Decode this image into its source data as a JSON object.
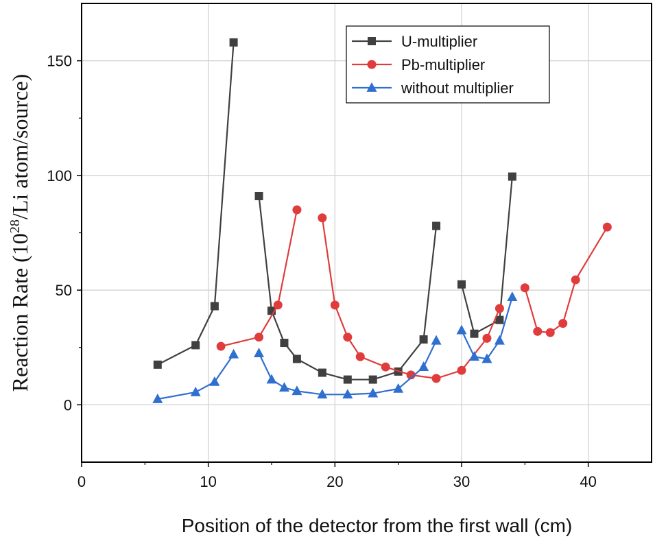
{
  "chart_data": {
    "type": "line",
    "xlabel": "Position of the detector from the first wall (cm)",
    "ylabel": "Reaction Rate (10²⁸/Li atom/source)",
    "ylabel_main": "Reaction Rate (10",
    "ylabel_exp": "28",
    "ylabel_tail": "/Li atom/source)",
    "xlim": [
      0,
      45
    ],
    "ylim": [
      -25,
      175
    ],
    "xticks": [
      0,
      10,
      20,
      30,
      40
    ],
    "yticks": [
      0,
      50,
      100,
      150
    ],
    "grid": true,
    "legend_position": "top-right",
    "series": [
      {
        "name": "U-multiplier",
        "color": "#404040",
        "marker": "square",
        "segments": [
          [
            [
              6,
              17.5
            ],
            [
              9,
              26
            ],
            [
              10.5,
              43
            ],
            [
              12,
              158
            ]
          ],
          [
            [
              14,
              91
            ],
            [
              15,
              41
            ],
            [
              16,
              27
            ],
            [
              17,
              20
            ],
            [
              19,
              14
            ],
            [
              21,
              11
            ],
            [
              23,
              11
            ],
            [
              25,
              14.5
            ],
            [
              27,
              28.5
            ],
            [
              28,
              78
            ]
          ],
          [
            [
              30,
              52.5
            ],
            [
              31,
              31
            ],
            [
              33,
              37
            ],
            [
              34,
              99.5
            ]
          ]
        ]
      },
      {
        "name": "Pb-multiplier",
        "color": "#e03c3c",
        "marker": "circle",
        "segments": [
          [
            [
              11,
              25.5
            ],
            [
              14,
              29.5
            ],
            [
              15.5,
              43.5
            ],
            [
              17,
              85
            ]
          ],
          [
            [
              19,
              81.5
            ],
            [
              20,
              43.5
            ],
            [
              21,
              29.5
            ],
            [
              22,
              21
            ],
            [
              24,
              16.5
            ],
            [
              26,
              13
            ],
            [
              28,
              11.5
            ],
            [
              30,
              15
            ],
            [
              32,
              29
            ],
            [
              33,
              42
            ]
          ],
          [
            [
              35,
              51
            ],
            [
              36,
              32
            ],
            [
              37,
              31.5
            ],
            [
              38,
              35.5
            ],
            [
              39,
              54.5
            ],
            [
              41.5,
              77.5
            ]
          ]
        ]
      },
      {
        "name": "without multiplier",
        "color": "#2f6fd0",
        "marker": "triangle",
        "segments": [
          [
            [
              6,
              2.5
            ],
            [
              9,
              5.5
            ],
            [
              10.5,
              10
            ],
            [
              12,
              22
            ]
          ],
          [
            [
              14,
              22.5
            ],
            [
              15,
              11
            ],
            [
              16,
              7.5
            ],
            [
              17,
              6
            ],
            [
              19,
              4.5
            ],
            [
              21,
              4.5
            ],
            [
              23,
              5
            ],
            [
              25,
              7
            ],
            [
              27,
              16.5
            ],
            [
              28,
              28
            ]
          ],
          [
            [
              30,
              32.5
            ],
            [
              31,
              21
            ],
            [
              32,
              20
            ],
            [
              33,
              28
            ],
            [
              34,
              47
            ]
          ]
        ]
      }
    ]
  }
}
